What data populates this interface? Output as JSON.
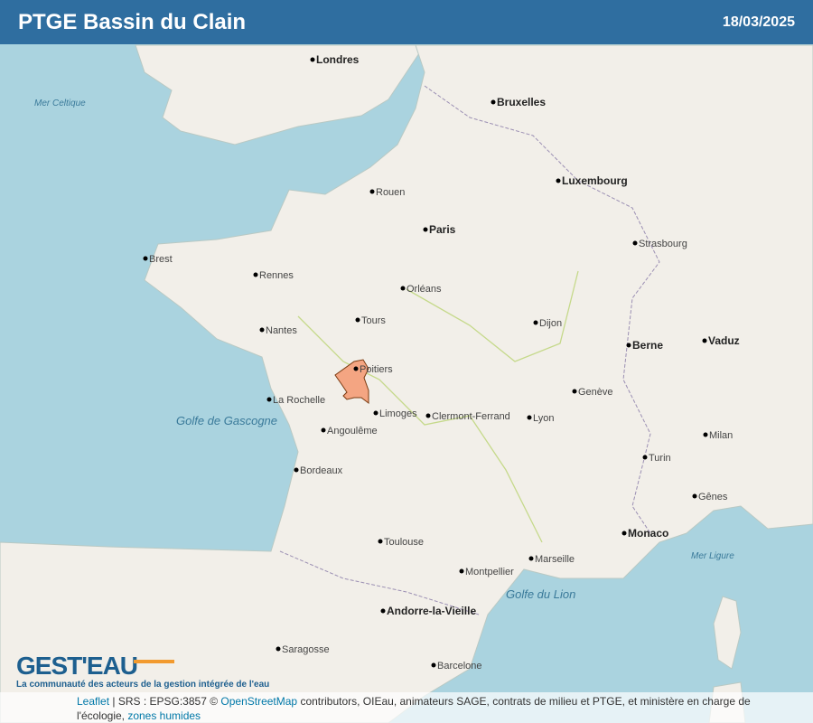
{
  "header": {
    "title": "PTGE Bassin du Clain",
    "date": "18/03/2025"
  },
  "map": {
    "highlight_color": "#f4a582",
    "basin_name": "Bassin du Clain",
    "sea_labels": [
      "Golfe de Gascogne",
      "Golfe du Lion",
      "Mer Celtique",
      "Mer Ligure"
    ],
    "cities": [
      {
        "name": "Paris",
        "major": true
      },
      {
        "name": "Londres",
        "major": true
      },
      {
        "name": "Bruxelles",
        "major": true
      },
      {
        "name": "Luxembourg",
        "major": true
      },
      {
        "name": "Berne",
        "major": true
      },
      {
        "name": "Monaco",
        "major": true
      },
      {
        "name": "Andorre-la-Vieille",
        "major": true
      },
      {
        "name": "Vaduz",
        "major": true
      },
      {
        "name": "Nantes"
      },
      {
        "name": "Bordeaux"
      },
      {
        "name": "Toulouse"
      },
      {
        "name": "Lyon"
      },
      {
        "name": "Marseille"
      },
      {
        "name": "Limoges"
      },
      {
        "name": "Poitiers"
      },
      {
        "name": "Rennes"
      },
      {
        "name": "Brest"
      },
      {
        "name": "Rouen"
      },
      {
        "name": "Orléans"
      },
      {
        "name": "Tours"
      },
      {
        "name": "Dijon"
      },
      {
        "name": "Strasbourg"
      },
      {
        "name": "Montpellier"
      },
      {
        "name": "Clermont-Ferrand"
      },
      {
        "name": "Barcelone"
      },
      {
        "name": "Saragosse"
      },
      {
        "name": "Genève"
      },
      {
        "name": "Turin"
      },
      {
        "name": "Milan"
      },
      {
        "name": "Gênes"
      },
      {
        "name": "La Rochelle"
      },
      {
        "name": "Angoulême"
      }
    ]
  },
  "logo": {
    "name": "GEST'EAU",
    "tagline": "La communauté des acteurs de la gestion intégrée de l'eau"
  },
  "attribution": {
    "leaflet": "Leaflet",
    "srs": " | SRS : EPSG:3857 © ",
    "osm": "OpenStreetMap",
    "rest": " contributors, OIEau, animateurs SAGE, contrats de milieu et PTGE, et ministère en charge de l'écologie, ",
    "zones": "zones humides"
  }
}
